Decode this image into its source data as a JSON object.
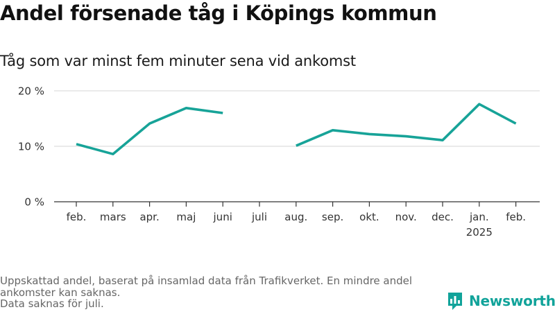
{
  "header": {
    "title": "Andel försenade tåg i Köpings kommun",
    "subtitle": "Tåg som var minst fem minuter sena vid ankomst"
  },
  "chart_data": {
    "type": "line",
    "title": "Andel försenade tåg i Köpings kommun",
    "subtitle": "Tåg som var minst fem minuter sena vid ankomst",
    "categories": [
      "feb.",
      "mars",
      "apr.",
      "maj",
      "juni",
      "juli",
      "aug.",
      "sep.",
      "okt.",
      "nov.",
      "dec.",
      "jan.",
      "feb."
    ],
    "year_labels": [
      "",
      "",
      "",
      "",
      "",
      "",
      "",
      "",
      "",
      "",
      "",
      "2025",
      ""
    ],
    "series": [
      {
        "values": [
          10.4,
          8.6,
          14.1,
          16.9,
          16.0,
          null,
          10.1,
          12.9,
          12.2,
          11.8,
          11.1,
          17.6,
          14.1
        ]
      }
    ],
    "ylim": [
      0,
      20
    ],
    "yticks": [
      0,
      10,
      20
    ],
    "ytick_labels": [
      "0 %",
      "10 %",
      "20 %"
    ],
    "xlabel": "",
    "ylabel": "",
    "grid": true,
    "line_color": "#17a398",
    "grid_color": "#dddddd",
    "axis_color": "#333333"
  },
  "footer": {
    "note_line1": "Uppskattad andel, baserat på insamlad data från Trafikverket. En mindre andel ankomster kan saknas.",
    "note_line2": "Data saknas för juli."
  },
  "brand": {
    "name": "Newsworthy",
    "icon": "newsworthy-logo-icon",
    "color": "#11a39a"
  }
}
